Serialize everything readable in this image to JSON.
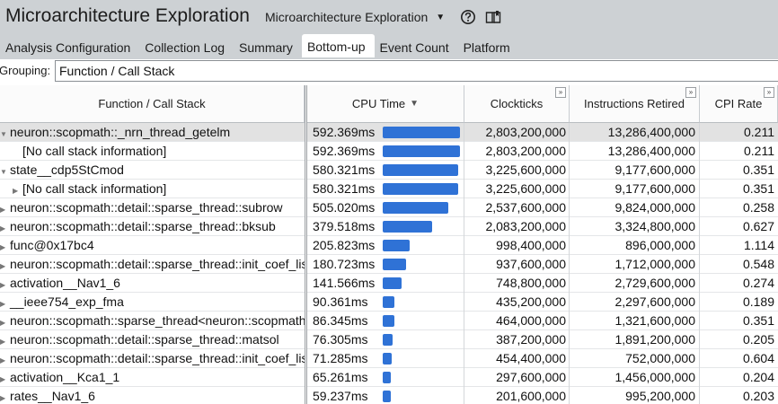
{
  "app": {
    "title": "Microarchitecture Exploration",
    "view_selector": "Microarchitecture Exploration"
  },
  "icons": {
    "help": "help-circle-icon",
    "book": "book-icon",
    "dropdown": "caret-down-icon"
  },
  "tabs": [
    {
      "label": "Analysis Configuration"
    },
    {
      "label": "Collection Log"
    },
    {
      "label": "Summary"
    },
    {
      "label": "Bottom-up",
      "active": true
    },
    {
      "label": "Event Count"
    },
    {
      "label": "Platform"
    }
  ],
  "grouping": {
    "label": "Grouping:",
    "value": "Function / Call Stack"
  },
  "columns": {
    "function": "Function / Call Stack",
    "cpu_time": "CPU Time",
    "clockticks": "Clockticks",
    "instructions": "Instructions Retired",
    "cpi": "CPI Rate"
  },
  "colors": {
    "bar": "#2f72d6",
    "header_bg": "#cdd1d4",
    "selected_row": "#e2e2e2"
  },
  "cpu_time_max_ms": 592.369,
  "rows": [
    {
      "func": "neuron::scopmath::_nrn_thread_getelm",
      "indent": 0,
      "expander": "expanded",
      "cpu": "592.369ms",
      "cpu_ms": 592.369,
      "clk": "2,803,200,000",
      "ins": "13,286,400,000",
      "cpi": "0.211",
      "selected": true
    },
    {
      "func": "[No call stack information]",
      "indent": 1,
      "expander": "none",
      "cpu": "592.369ms",
      "cpu_ms": 592.369,
      "clk": "2,803,200,000",
      "ins": "13,286,400,000",
      "cpi": "0.211"
    },
    {
      "func": "state__cdp5StCmod",
      "indent": 0,
      "expander": "expanded",
      "cpu": "580.321ms",
      "cpu_ms": 580.321,
      "clk": "3,225,600,000",
      "ins": "9,177,600,000",
      "cpi": "0.351"
    },
    {
      "func": "[No call stack information]",
      "indent": 1,
      "expander": "collapsed",
      "cpu": "580.321ms",
      "cpu_ms": 580.321,
      "clk": "3,225,600,000",
      "ins": "9,177,600,000",
      "cpi": "0.351"
    },
    {
      "func": "neuron::scopmath::detail::sparse_thread::subrow",
      "indent": 0,
      "expander": "collapsed",
      "cpu": "505.020ms",
      "cpu_ms": 505.02,
      "clk": "2,537,600,000",
      "ins": "9,824,000,000",
      "cpi": "0.258"
    },
    {
      "func": "neuron::scopmath::detail::sparse_thread::bksub",
      "indent": 0,
      "expander": "collapsed",
      "cpu": "379.518ms",
      "cpu_ms": 379.518,
      "clk": "2,083,200,000",
      "ins": "3,324,800,000",
      "cpi": "0.627"
    },
    {
      "func": "func@0x17bc4",
      "indent": 0,
      "expander": "collapsed",
      "cpu": "205.823ms",
      "cpu_ms": 205.823,
      "clk": "998,400,000",
      "ins": "896,000,000",
      "cpi": "1.114"
    },
    {
      "func": "neuron::scopmath::detail::sparse_thread::init_coef_lis",
      "indent": 0,
      "expander": "collapsed",
      "cpu": "180.723ms",
      "cpu_ms": 180.723,
      "clk": "937,600,000",
      "ins": "1,712,000,000",
      "cpi": "0.548"
    },
    {
      "func": "activation__Nav1_6",
      "indent": 0,
      "expander": "collapsed",
      "cpu": "141.566ms",
      "cpu_ms": 141.566,
      "clk": "748,800,000",
      "ins": "2,729,600,000",
      "cpi": "0.274"
    },
    {
      "func": "__ieee754_exp_fma",
      "indent": 0,
      "expander": "collapsed",
      "cpu": "90.361ms",
      "cpu_ms": 90.361,
      "clk": "435,200,000",
      "ins": "2,297,600,000",
      "cpi": "0.189"
    },
    {
      "func": "neuron::scopmath::sparse_thread<neuron::scopmath",
      "indent": 0,
      "expander": "collapsed",
      "cpu": "86.345ms",
      "cpu_ms": 86.345,
      "clk": "464,000,000",
      "ins": "1,321,600,000",
      "cpi": "0.351"
    },
    {
      "func": "neuron::scopmath::detail::sparse_thread::matsol",
      "indent": 0,
      "expander": "collapsed",
      "cpu": "76.305ms",
      "cpu_ms": 76.305,
      "clk": "387,200,000",
      "ins": "1,891,200,000",
      "cpi": "0.205"
    },
    {
      "func": "neuron::scopmath::detail::sparse_thread::init_coef_lis",
      "indent": 0,
      "expander": "collapsed",
      "cpu": "71.285ms",
      "cpu_ms": 71.285,
      "clk": "454,400,000",
      "ins": "752,000,000",
      "cpi": "0.604"
    },
    {
      "func": "activation__Kca1_1",
      "indent": 0,
      "expander": "collapsed",
      "cpu": "65.261ms",
      "cpu_ms": 65.261,
      "clk": "297,600,000",
      "ins": "1,456,000,000",
      "cpi": "0.204"
    },
    {
      "func": "rates__Nav1_6",
      "indent": 0,
      "expander": "collapsed",
      "cpu": "59.237ms",
      "cpu_ms": 59.237,
      "clk": "201,600,000",
      "ins": "995,200,000",
      "cpi": "0.203"
    }
  ]
}
